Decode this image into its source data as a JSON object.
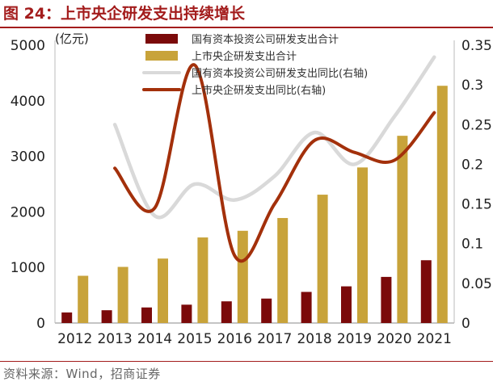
{
  "figure_title": "图 24：上市央企研发支出持续增长",
  "source": "资料来源：Wind，招商证券",
  "colors": {
    "soe_bar": "#7b0a0a",
    "listed_bar": "#c8a33a",
    "soe_line": "#d9d9d9",
    "listed_line": "#a3300b",
    "title": "#a31c1c"
  },
  "chart_data": {
    "type": "bar",
    "unit_label": "(亿元)",
    "categories": [
      "2012",
      "2013",
      "2014",
      "2015",
      "2016",
      "2017",
      "2018",
      "2019",
      "2020",
      "2021"
    ],
    "ylim": [
      0,
      5000
    ],
    "yticks": [
      "0",
      "1000",
      "2000",
      "3000",
      "4000",
      "5000"
    ],
    "y2lim": [
      0,
      0.35
    ],
    "y2ticks": [
      "0",
      "0.05",
      "0.1",
      "0.15",
      "0.2",
      "0.25",
      "0.3",
      "0.35"
    ],
    "grid": false,
    "legend_position": "top",
    "series": [
      {
        "name": "国有资本投资公司研发支出合计",
        "kind": "bar",
        "axis": "left",
        "color": "#7b0a0a",
        "values": [
          190,
          230,
          280,
          330,
          390,
          440,
          560,
          660,
          830,
          1130
        ]
      },
      {
        "name": "上市央企研发支出合计",
        "kind": "bar",
        "axis": "left",
        "color": "#c8a33a",
        "values": [
          850,
          1010,
          1160,
          1540,
          1660,
          1890,
          2310,
          2800,
          3370,
          4270
        ]
      },
      {
        "name": "国有资本投资公司研发支出同比(右轴)",
        "kind": "line",
        "axis": "right",
        "color": "#d9d9d9",
        "values": [
          null,
          0.25,
          0.135,
          0.175,
          0.155,
          0.185,
          0.24,
          0.2,
          0.26,
          0.335
        ]
      },
      {
        "name": "上市央企研发支出同比(右轴)",
        "kind": "line",
        "axis": "right",
        "color": "#a3300b",
        "values": [
          null,
          0.195,
          0.145,
          0.325,
          0.085,
          0.15,
          0.23,
          0.215,
          0.205,
          0.265
        ]
      }
    ]
  }
}
